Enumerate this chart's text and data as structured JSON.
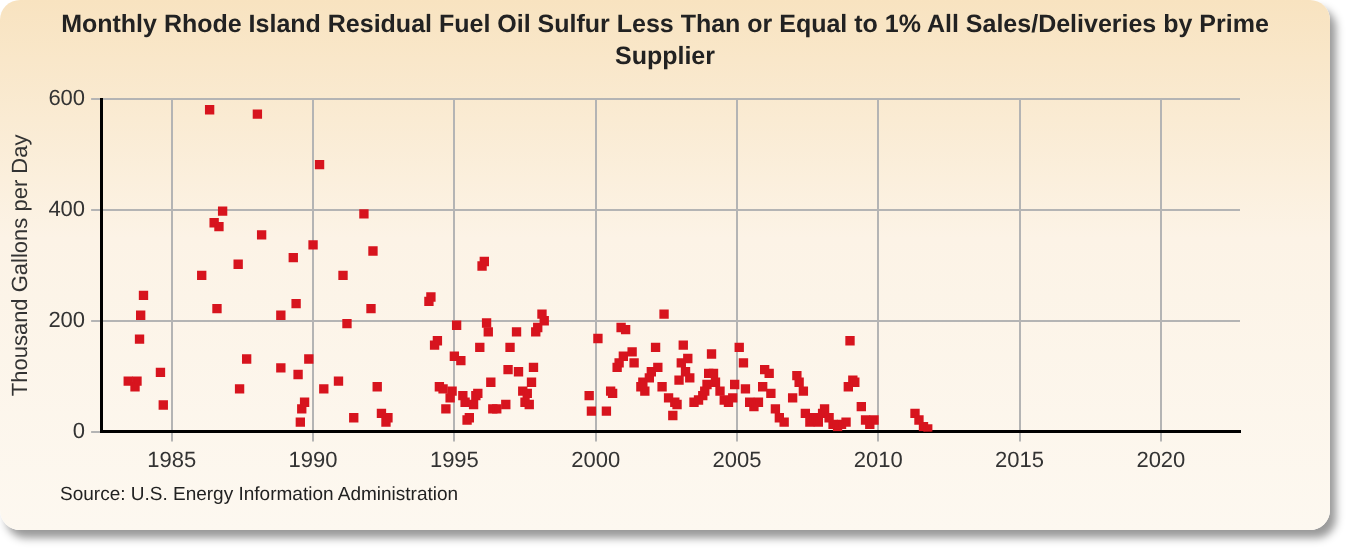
{
  "chart_data": {
    "type": "scatter",
    "title": "Monthly Rhode Island Residual Fuel Oil Sulfur Less Than or Equal to 1% All Sales/Deliveries by Prime Supplier",
    "ylabel": "Thousand Gallons per Day",
    "annotations": [
      "Source: U.S. Energy Information Administration"
    ],
    "xlim": [
      1982.5,
      2022.8
    ],
    "xticks": [
      1985,
      1990,
      1995,
      2000,
      2005,
      2010,
      2015,
      2020
    ],
    "ylim": [
      0,
      600
    ],
    "yticks": [
      0,
      200,
      400,
      600
    ],
    "grid": true,
    "legend": false,
    "marker": "square",
    "series": [
      {
        "color": "#d7141e",
        "x": [
          1983.46,
          1983.7,
          1983.77,
          1983.86,
          1983.9,
          1984.0,
          1984.6,
          1984.7,
          1986.06,
          1986.34,
          1986.5,
          1986.6,
          1986.67,
          1986.8,
          1987.35,
          1987.4,
          1987.65,
          1988.03,
          1988.18,
          1988.86,
          1988.86,
          1989.3,
          1989.4,
          1989.47,
          1989.55,
          1989.6,
          1989.7,
          1989.85,
          1990.0,
          1990.23,
          1990.38,
          1990.9,
          1991.06,
          1991.2,
          1991.44,
          1991.8,
          1992.05,
          1992.12,
          1992.27,
          1992.42,
          1992.58,
          1992.65,
          1994.1,
          1994.17,
          1994.3,
          1994.4,
          1994.47,
          1994.6,
          1994.7,
          1994.85,
          1994.92,
          1995.0,
          1995.08,
          1995.23,
          1995.3,
          1995.38,
          1995.45,
          1995.53,
          1995.68,
          1995.76,
          1995.83,
          1995.9,
          1995.98,
          1996.06,
          1996.14,
          1996.2,
          1996.29,
          1996.36,
          1996.5,
          1996.82,
          1996.9,
          1996.97,
          1997.2,
          1997.27,
          1997.42,
          1997.5,
          1997.58,
          1997.65,
          1997.73,
          1997.8,
          1997.88,
          1997.95,
          1998.1,
          1998.18,
          1999.77,
          1999.85,
          2000.08,
          2000.38,
          2000.53,
          2000.6,
          2000.76,
          2000.83,
          2000.9,
          2000.98,
          2001.06,
          2001.29,
          2001.36,
          2001.6,
          2001.67,
          2001.74,
          2001.9,
          2001.97,
          2002.12,
          2002.2,
          2002.35,
          2002.42,
          2002.58,
          2002.73,
          2002.8,
          2002.88,
          2002.95,
          2003.03,
          2003.1,
          2003.18,
          2003.26,
          2003.33,
          2003.48,
          2003.64,
          2003.79,
          2003.86,
          2003.94,
          2004.0,
          2004.1,
          2004.17,
          2004.24,
          2004.4,
          2004.55,
          2004.7,
          2004.85,
          2004.92,
          2005.08,
          2005.23,
          2005.3,
          2005.45,
          2005.6,
          2005.76,
          2005.91,
          2005.98,
          2006.14,
          2006.2,
          2006.36,
          2006.5,
          2006.67,
          2006.97,
          2007.12,
          2007.2,
          2007.35,
          2007.42,
          2007.58,
          2007.73,
          2007.88,
          2008.03,
          2008.1,
          2008.26,
          2008.4,
          2008.56,
          2008.7,
          2008.86,
          2008.94,
          2009.0,
          2009.1,
          2009.17,
          2009.4,
          2009.55,
          2009.7,
          2009.85,
          2011.3,
          2011.44,
          2011.6,
          2011.75
        ],
        "values": [
          91,
          81,
          91,
          167,
          210,
          246,
          107,
          48,
          282,
          581,
          377,
          222,
          370,
          398,
          302,
          77,
          131,
          573,
          355,
          210,
          115,
          314,
          231,
          103,
          17,
          41,
          53,
          131,
          337,
          482,
          77,
          91,
          282,
          195,
          25,
          393,
          222,
          326,
          81,
          33,
          17,
          25,
          235,
          243,
          156,
          164,
          81,
          77,
          41,
          61,
          73,
          136,
          192,
          128,
          65,
          53,
          21,
          25,
          49,
          65,
          69,
          152,
          299,
          307,
          196,
          180,
          89,
          41,
          41,
          49,
          112,
          152,
          180,
          108,
          73,
          53,
          69,
          49,
          89,
          116,
          180,
          188,
          212,
          200,
          65,
          37,
          168,
          37,
          73,
          69,
          116,
          124,
          188,
          136,
          184,
          144,
          124,
          81,
          89,
          73,
          97,
          108,
          152,
          116,
          81,
          212,
          61,
          29,
          53,
          49,
          93,
          124,
          156,
          108,
          132,
          97,
          53,
          57,
          65,
          73,
          85,
          105,
          140,
          105,
          89,
          73,
          57,
          53,
          61,
          85,
          152,
          124,
          77,
          53,
          45,
          53,
          81,
          112,
          105,
          69,
          41,
          25,
          17,
          61,
          101,
          89,
          73,
          33,
          17,
          25,
          17,
          33,
          41,
          25,
          13,
          9,
          13,
          17,
          81,
          164,
          93,
          89,
          45,
          21,
          13,
          21,
          33,
          21,
          9,
          5
        ]
      }
    ]
  }
}
